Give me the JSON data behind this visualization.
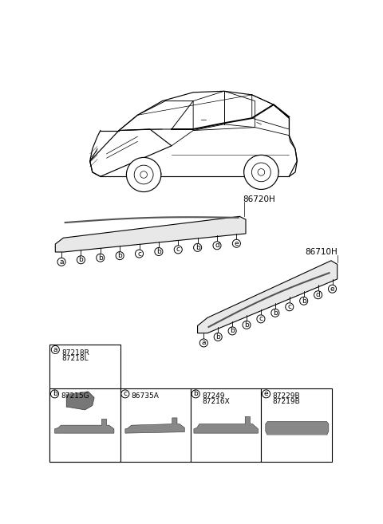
{
  "bg_color": "#ffffff",
  "label_86720H": "86720H",
  "label_86710H": "86710H",
  "strip_left_labels": [
    "a",
    "b",
    "b",
    "b",
    "c",
    "b",
    "c",
    "b",
    "d",
    "e"
  ],
  "strip_right_labels": [
    "a",
    "b",
    "b",
    "b",
    "c",
    "b",
    "c",
    "b",
    "d",
    "e"
  ],
  "parts": [
    {
      "letter": "a",
      "part_numbers": [
        "87218R",
        "87218L"
      ],
      "col": 0
    },
    {
      "letter": "b",
      "part_numbers": [
        "87215G"
      ],
      "col": 1
    },
    {
      "letter": "c",
      "part_numbers": [
        "86735A"
      ],
      "col": 2
    },
    {
      "letter": "b",
      "part_numbers": [
        "87249",
        "87216X"
      ],
      "col": 3
    },
    {
      "letter": "e",
      "part_numbers": [
        "87229B",
        "87219B"
      ],
      "col": 4
    }
  ]
}
